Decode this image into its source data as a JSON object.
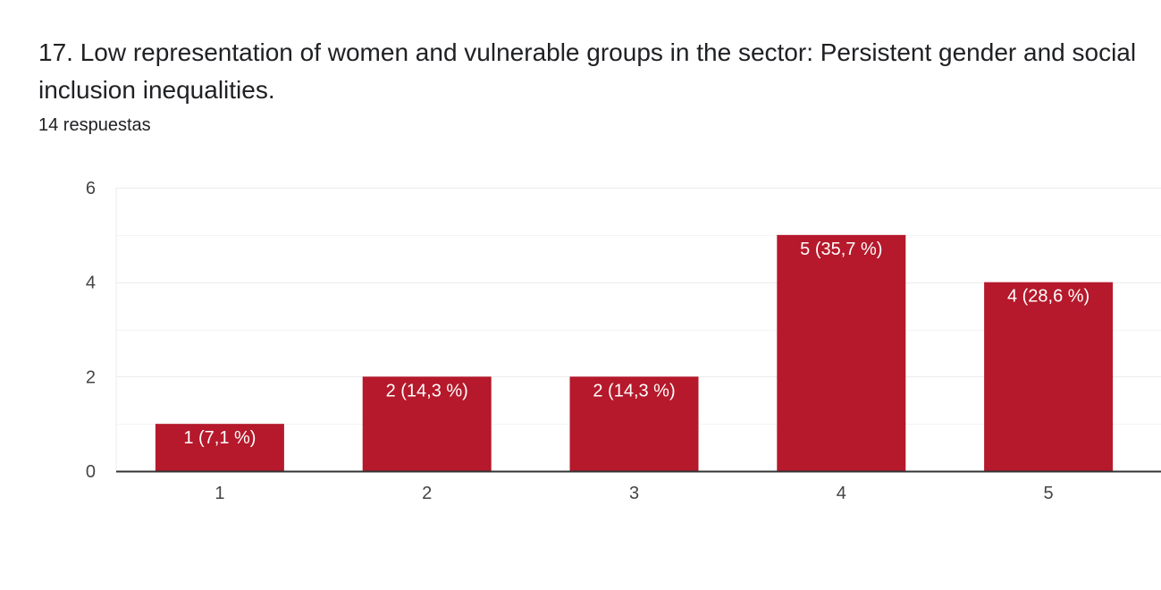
{
  "question": {
    "title": "17.  Low representation of women and vulnerable groups in the sector: Persistent gender and social inclusion inequalities.",
    "responses": "14 respuestas"
  },
  "colors": {
    "bar": "#b5192b",
    "grid": "#ebebeb",
    "axis": "#333333",
    "text": "#202124",
    "tick": "#444444",
    "label": "#ffffff"
  },
  "chart_data": {
    "type": "bar",
    "categories": [
      "1",
      "2",
      "3",
      "4",
      "5"
    ],
    "values": [
      1,
      2,
      2,
      5,
      4
    ],
    "data_labels": [
      "1 (7,1 %)",
      "2 (14,3 %)",
      "2 (14,3 %)",
      "5 (35,7 %)",
      "4 (28,6 %)"
    ],
    "ylim": [
      0,
      6
    ],
    "yticks": [
      "0",
      "2",
      "4",
      "6"
    ],
    "grid": true
  }
}
